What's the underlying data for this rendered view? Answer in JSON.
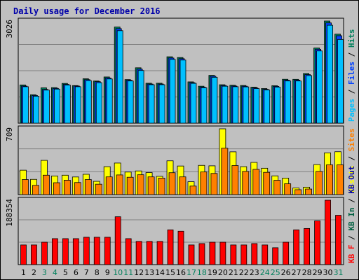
{
  "chart_data": {
    "type": "bar",
    "title": "Daily usage for December 2016",
    "categories": [
      "1",
      "2",
      "3",
      "4",
      "5",
      "6",
      "7",
      "8",
      "9",
      "10",
      "11",
      "12",
      "13",
      "14",
      "15",
      "16",
      "17",
      "18",
      "19",
      "20",
      "21",
      "22",
      "23",
      "24",
      "25",
      "26",
      "27",
      "28",
      "29",
      "30",
      "31"
    ],
    "weekend_days": [
      "3",
      "4",
      "10",
      "11",
      "17",
      "18",
      "24",
      "25",
      "31"
    ],
    "colors": {
      "hits": "#00805c",
      "files": "#0040ff",
      "pages": "#00c0ff",
      "visits": "#ffff00",
      "sites": "#ff8000",
      "kb_in": "#006040",
      "kb_out": "#0000aa",
      "kb_f": "#ff0000",
      "weekday_label": "#000000",
      "weekend_label": "#00805c"
    },
    "panels": [
      {
        "id": "hits",
        "ymax_label": "3026",
        "ylim": [
          0,
          3026
        ],
        "legend": [
          {
            "text": "Pages",
            "key": "pages"
          },
          {
            "text": " / ",
            "key": null
          },
          {
            "text": "Files",
            "key": "files"
          },
          {
            "text": " / ",
            "key": null
          },
          {
            "text": "Hits",
            "key": "hits"
          }
        ],
        "series": [
          {
            "key": "hits",
            "values": [
              1133,
              843,
              1048,
              1054,
              1178,
              1114,
              1316,
              1249,
              1369,
              2849,
              1292,
              1641,
              1184,
              1184,
              1967,
              1945,
              1224,
              1095,
              1417,
              1139,
              1124,
              1117,
              1067,
              1026,
              1110,
              1301,
              1299,
              1472,
              2228,
              3026,
              2637
            ]
          },
          {
            "key": "files",
            "values": [
              1100,
              820,
              1000,
              1030,
              1150,
              1100,
              1290,
              1230,
              1340,
              2800,
              1270,
              1600,
              1160,
              1160,
              1930,
              1910,
              1200,
              1070,
              1390,
              1115,
              1100,
              1095,
              1045,
              1004,
              1090,
              1275,
              1275,
              1440,
              2190,
              2970,
              2590
            ]
          },
          {
            "key": "pages",
            "values": [
              1080,
              800,
              980,
              1010,
              1130,
              1080,
              1260,
              1200,
              1310,
              2740,
              1250,
              1560,
              1140,
              1140,
              1890,
              1870,
              1180,
              1050,
              1360,
              1095,
              1080,
              1075,
              1025,
              985,
              1070,
              1250,
              1250,
              1410,
              2140,
              2900,
              2480
            ]
          }
        ]
      },
      {
        "id": "visits",
        "ymax_label": "709",
        "ylim": [
          0,
          709
        ],
        "legend": [
          {
            "text": "Visits",
            "key": "visits"
          },
          {
            "text": " / ",
            "key": null
          },
          {
            "text": "Sites",
            "key": "sites"
          }
        ],
        "series": [
          {
            "key": "visits",
            "values": [
              263,
              164,
              369,
              201,
              209,
              190,
              219,
              143,
              301,
              340,
              243,
              255,
              237,
              197,
              364,
              308,
              139,
              315,
              310,
              709,
              461,
              301,
              347,
              284,
              202,
              178,
              72,
              80,
              324,
              450,
              462
            ]
          },
          {
            "key": "sites",
            "values": [
              162,
              100,
              209,
              128,
              155,
              130,
              162,
              112,
              191,
              212,
              187,
              214,
              191,
              178,
              236,
              191,
              92,
              244,
              228,
              500,
              313,
              250,
              272,
              240,
              154,
              117,
              53,
              60,
              250,
              321,
              321
            ]
          }
        ]
      },
      {
        "id": "kbytes",
        "ymax_label": "188354",
        "ylim": [
          0,
          188354
        ],
        "legend": [
          {
            "text": "KB F",
            "key": "kb_f"
          },
          {
            "text": " / ",
            "key": null
          },
          {
            "text": "KB In",
            "key": "kb_in"
          },
          {
            "text": " / ",
            "key": null
          },
          {
            "text": "KB Out",
            "key": "kb_out"
          }
        ],
        "series": [
          {
            "key": "kb_f",
            "values": [
              57474,
              57474,
              65521,
              75904,
              75904,
              75904,
              80000,
              80000,
              80000,
              139958,
              75904,
              67874,
              67874,
              67874,
              101660,
              97680,
              57474,
              61493,
              65521,
              65521,
              57474,
              57474,
              61493,
              57474,
              49360,
              65521,
              101660,
              105680,
              127790,
              188354,
              144250
            ]
          }
        ]
      }
    ]
  }
}
